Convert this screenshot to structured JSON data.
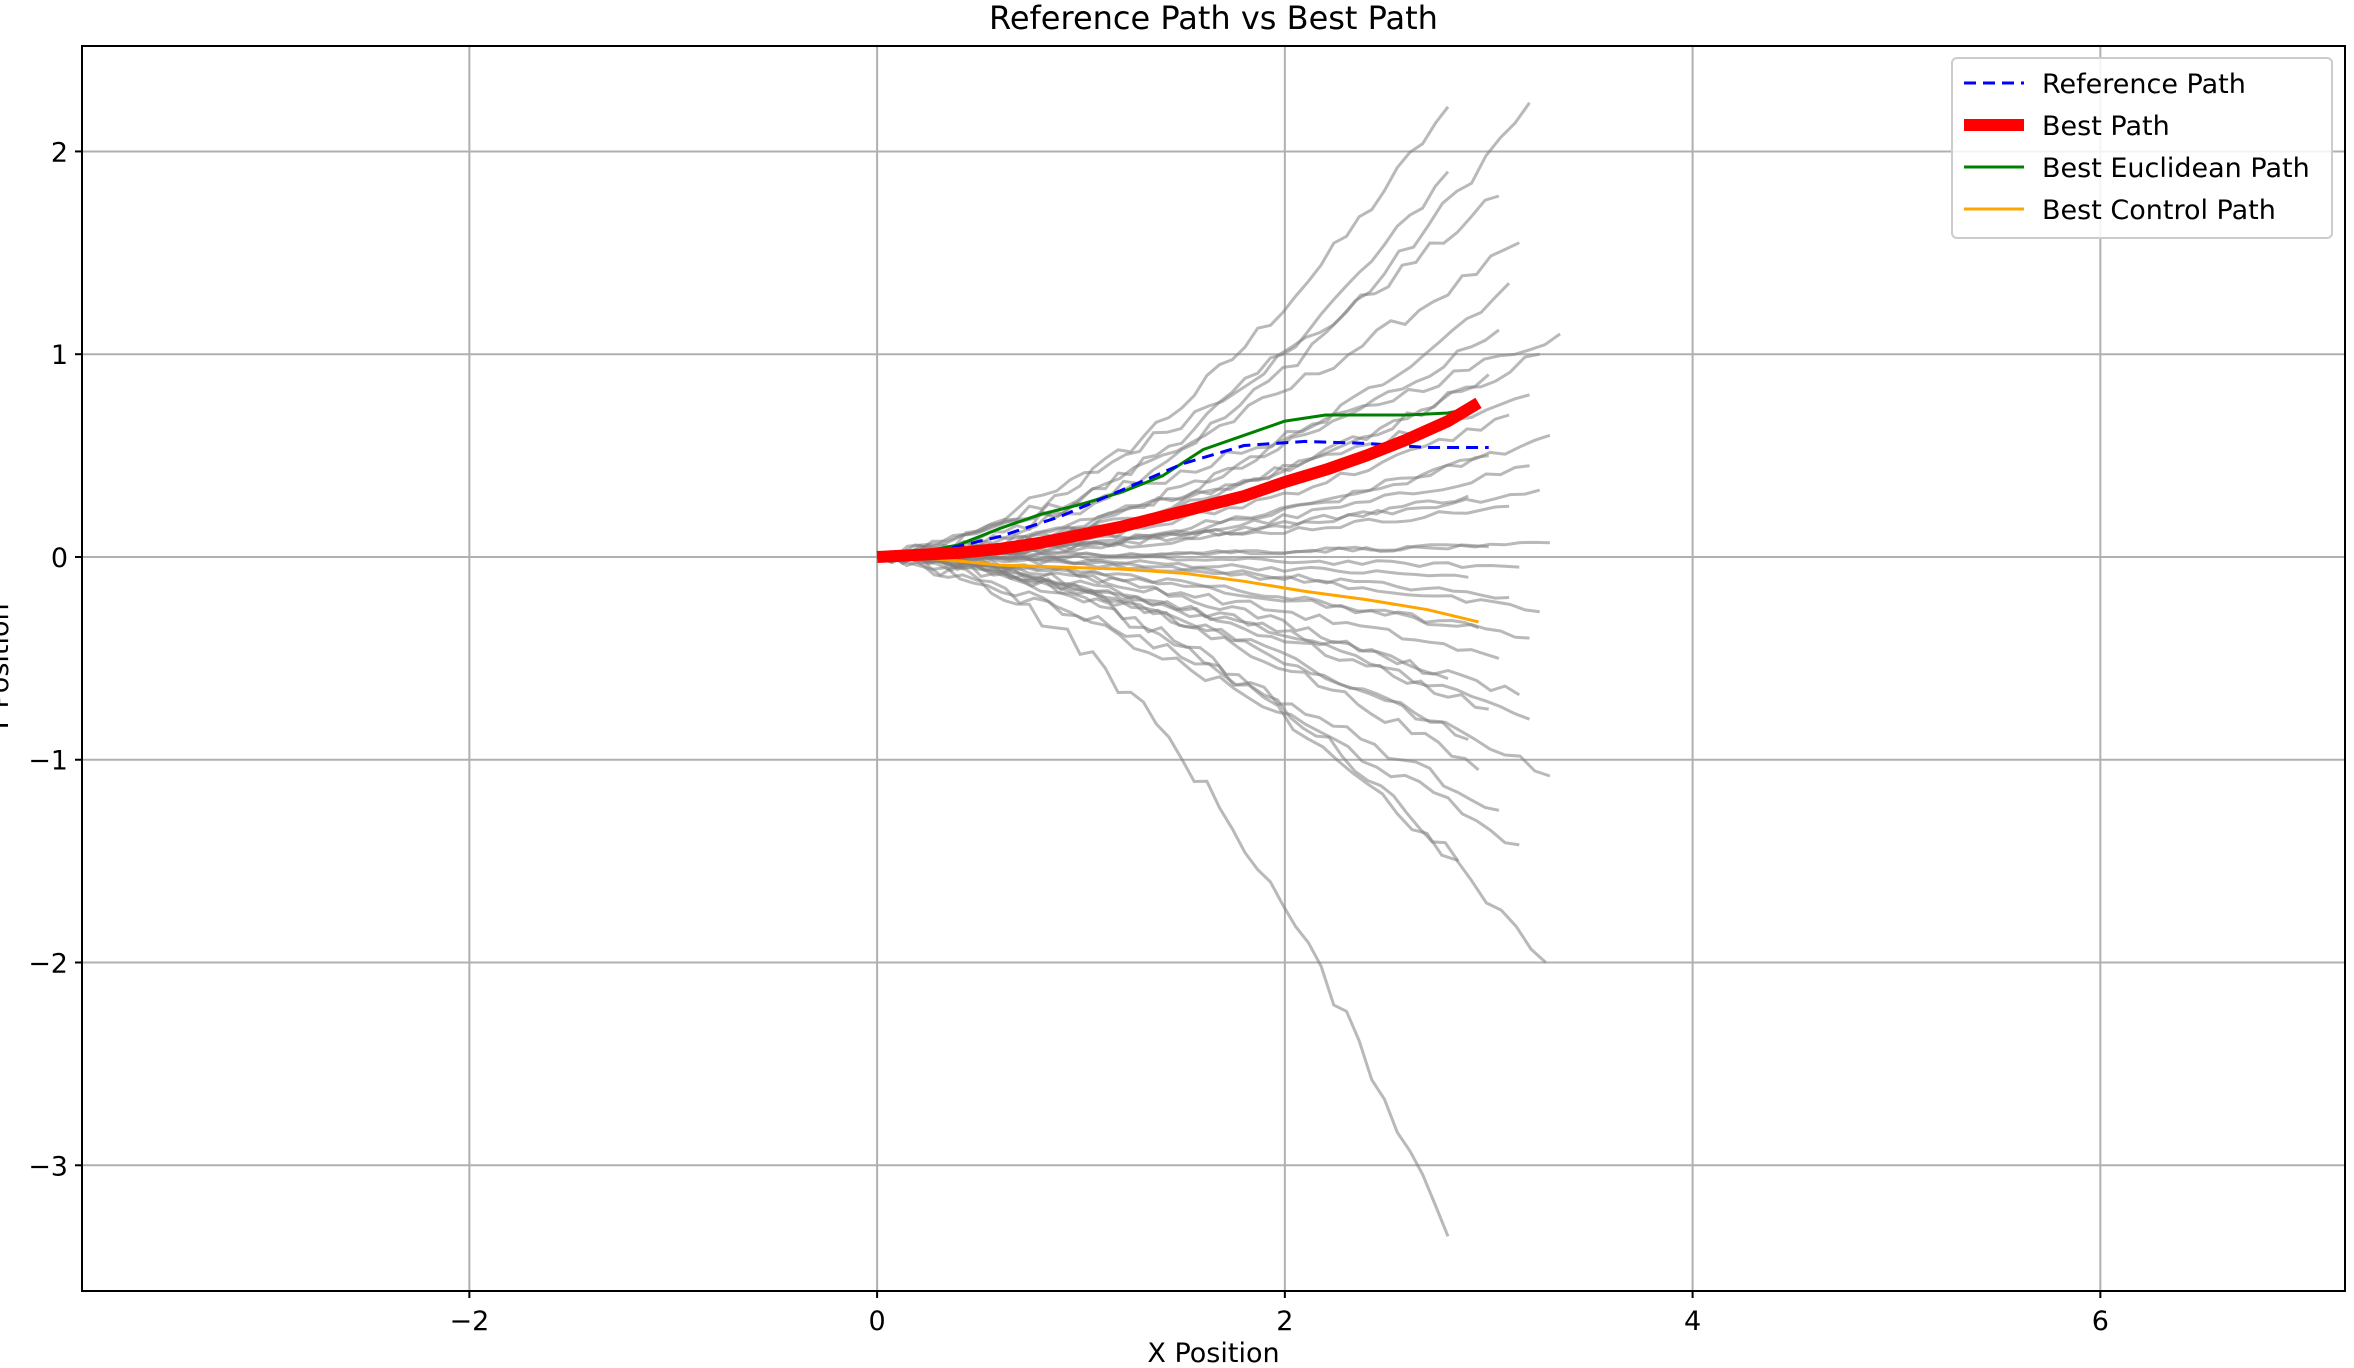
{
  "chart_data": {
    "type": "line",
    "title": "Reference Path vs Best Path",
    "xlabel": "X Position",
    "ylabel": "Y Position",
    "xlim": [
      -3.9,
      7.2
    ],
    "ylim": [
      -3.62,
      2.52
    ],
    "grid": true,
    "legend_position": "top-right",
    "x_ticks": [
      -2,
      0,
      2,
      4,
      6
    ],
    "x_tick_labels": [
      "−2",
      "0",
      "2",
      "4",
      "6"
    ],
    "y_ticks": [
      -3,
      -2,
      -1,
      0,
      1,
      2
    ],
    "y_tick_labels": [
      "−3",
      "−2",
      "−1",
      "0",
      "1",
      "2"
    ],
    "series": [
      {
        "name": "Reference Path",
        "color": "#0000ff",
        "style": "dashed",
        "x": [
          0,
          0.3,
          0.6,
          0.9,
          1.2,
          1.5,
          1.8,
          2.1,
          2.4,
          2.7,
          3.0
        ],
        "y": [
          0,
          0.03,
          0.1,
          0.2,
          0.33,
          0.46,
          0.55,
          0.57,
          0.56,
          0.54,
          0.54
        ]
      },
      {
        "name": "Best Path",
        "color": "#ff0000",
        "style": "solid-thick",
        "x": [
          0,
          0.2,
          0.4,
          0.6,
          0.8,
          1.0,
          1.2,
          1.4,
          1.6,
          1.8,
          2.0,
          2.2,
          2.4,
          2.6,
          2.8,
          2.95
        ],
        "y": [
          0,
          0.01,
          0.02,
          0.04,
          0.07,
          0.11,
          0.15,
          0.2,
          0.25,
          0.3,
          0.37,
          0.43,
          0.5,
          0.58,
          0.67,
          0.76
        ]
      },
      {
        "name": "Best Euclidean Path",
        "color": "#008000",
        "style": "solid",
        "x": [
          0,
          0.2,
          0.4,
          0.6,
          0.8,
          1.0,
          1.2,
          1.4,
          1.6,
          1.8,
          2.0,
          2.2,
          2.4,
          2.6,
          2.8,
          2.95
        ],
        "y": [
          0,
          0.02,
          0.06,
          0.14,
          0.21,
          0.26,
          0.32,
          0.4,
          0.53,
          0.6,
          0.67,
          0.7,
          0.7,
          0.7,
          0.71,
          0.74
        ]
      },
      {
        "name": "Best Control Path",
        "color": "#ffa500",
        "style": "solid",
        "x": [
          0,
          0.3,
          0.6,
          0.9,
          1.2,
          1.5,
          1.8,
          2.1,
          2.4,
          2.7,
          2.95
        ],
        "y": [
          0,
          -0.01,
          -0.04,
          -0.05,
          -0.06,
          -0.08,
          -0.12,
          -0.17,
          -0.21,
          -0.26,
          -0.32
        ]
      }
    ],
    "background_path_endpoints": [
      [
        2.8,
        2.22
      ],
      [
        3.2,
        2.24
      ],
      [
        2.8,
        1.9
      ],
      [
        3.05,
        1.78
      ],
      [
        3.15,
        1.55
      ],
      [
        3.1,
        1.35
      ],
      [
        3.05,
        1.12
      ],
      [
        3.35,
        1.1
      ],
      [
        3.25,
        1.0
      ],
      [
        3.0,
        0.9
      ],
      [
        3.2,
        0.8
      ],
      [
        3.1,
        0.7
      ],
      [
        3.3,
        0.6
      ],
      [
        3.0,
        0.5
      ],
      [
        3.2,
        0.45
      ],
      [
        3.25,
        0.33
      ],
      [
        2.9,
        0.3
      ],
      [
        3.1,
        0.25
      ],
      [
        3.3,
        0.07
      ],
      [
        3.0,
        0.05
      ],
      [
        3.15,
        -0.05
      ],
      [
        2.9,
        -0.1
      ],
      [
        3.1,
        -0.2
      ],
      [
        3.25,
        -0.27
      ],
      [
        2.95,
        -0.35
      ],
      [
        3.2,
        -0.4
      ],
      [
        3.05,
        -0.5
      ],
      [
        2.8,
        -0.6
      ],
      [
        3.15,
        -0.68
      ],
      [
        3.0,
        -0.75
      ],
      [
        3.2,
        -0.8
      ],
      [
        2.9,
        -0.9
      ],
      [
        3.3,
        -1.08
      ],
      [
        2.95,
        -1.05
      ],
      [
        3.05,
        -1.25
      ],
      [
        3.15,
        -1.42
      ],
      [
        2.85,
        -1.5
      ],
      [
        3.28,
        -2.0
      ],
      [
        2.8,
        -3.35
      ]
    ]
  }
}
